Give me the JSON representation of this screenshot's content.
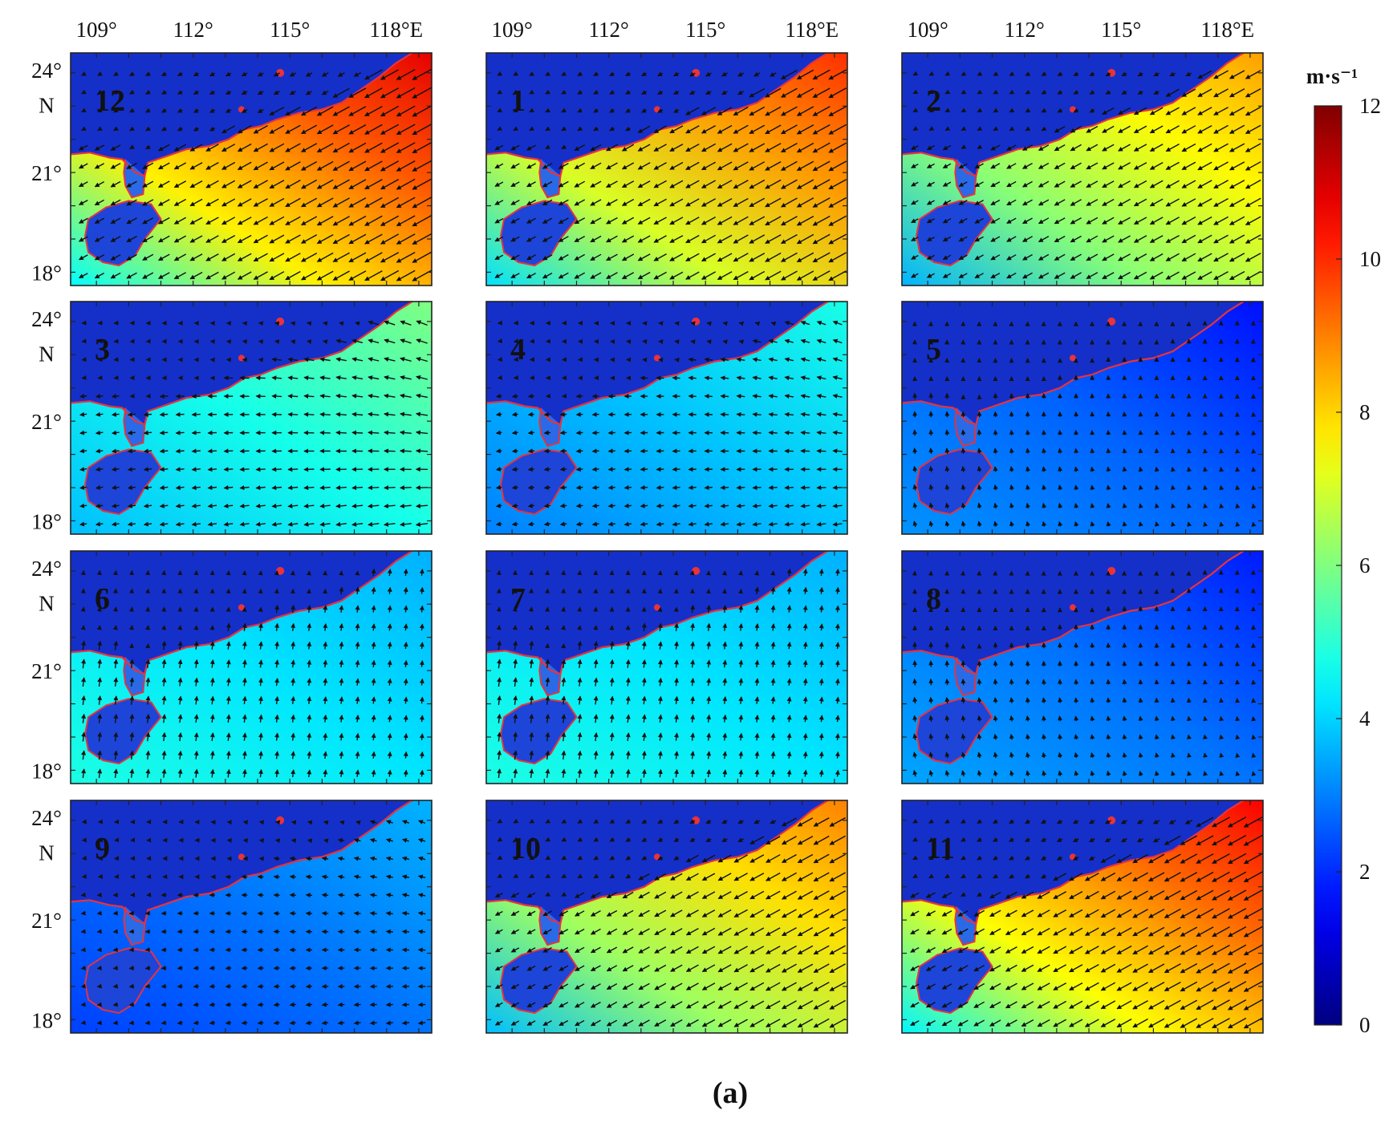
{
  "figure": {
    "caption": "(a)",
    "x_tick_labels": [
      "109°",
      "112°",
      "115°",
      "118°E"
    ],
    "y_tick_labels": [
      "24°",
      "N",
      "21°",
      "18°"
    ],
    "panels": [
      {
        "label": "12",
        "mean_speed": 9.0,
        "regime": "ne_monsoon"
      },
      {
        "label": "1",
        "mean_speed": 8.3,
        "regime": "ne_monsoon"
      },
      {
        "label": "2",
        "mean_speed": 7.2,
        "regime": "ne_monsoon"
      },
      {
        "label": "3",
        "mean_speed": 5.0,
        "regime": "east"
      },
      {
        "label": "4",
        "mean_speed": 4.0,
        "regime": "east"
      },
      {
        "label": "5",
        "mean_speed": 2.8,
        "regime": "southerly"
      },
      {
        "label": "6",
        "mean_speed": 4.2,
        "regime": "sw_monsoon"
      },
      {
        "label": "7",
        "mean_speed": 4.2,
        "regime": "sw_monsoon"
      },
      {
        "label": "8",
        "mean_speed": 3.0,
        "regime": "southerly"
      },
      {
        "label": "9",
        "mean_speed": 3.0,
        "regime": "east"
      },
      {
        "label": "10",
        "mean_speed": 7.5,
        "regime": "ne_monsoon"
      },
      {
        "label": "11",
        "mean_speed": 8.8,
        "regime": "ne_monsoon"
      }
    ]
  },
  "colorbar": {
    "unit": "m·s⁻¹",
    "ticks": [
      "0",
      "2",
      "4",
      "6",
      "8",
      "10",
      "12"
    ],
    "range": [
      0,
      12
    ],
    "colormap": "jet"
  },
  "colors": {
    "coastline": "#e8323c",
    "arrow": "#111111",
    "land": "#1530c8"
  }
}
